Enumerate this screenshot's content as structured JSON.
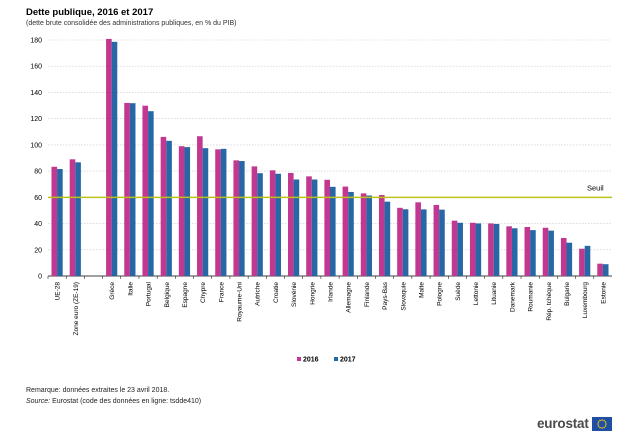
{
  "header": {
    "title": "Dette publique, 2016 et 2017",
    "subtitle": "(dette brute consolidée des administrations publiques, en % du PIB)"
  },
  "notes": {
    "remark": "Remarque: données extraites le 23 avril 2018.",
    "source_label": "Source:",
    "source_text": "Eurostat (code des données en ligne: tsdde410)"
  },
  "logo": {
    "text": "eurostat"
  },
  "chart_data": {
    "type": "bar",
    "title": "Dette publique, 2016 et 2017",
    "subtitle": "(dette brute consolidée des administrations publiques, en % du PIB)",
    "categories": [
      "UE-28",
      "Zone euro (ZE-19)",
      "",
      "Grèce",
      "Italie",
      "Portugal",
      "Belgique",
      "Espagne",
      "Chypre",
      "France",
      "Royaume-Uni",
      "Autriche",
      "Croatie",
      "Slovénie",
      "Hongrie",
      "Irlande",
      "Allemagne",
      "Finlande",
      "Pays-Bas",
      "Slovaquie",
      "Malte",
      "Pologne",
      "Suède",
      "Lettonie",
      "Lituanie",
      "Danemark",
      "Roumanie",
      "Rép. tchèque",
      "Bulgarie",
      "Luxembourg",
      "Estonie"
    ],
    "series": [
      {
        "name": "2016",
        "color": "#c2378f",
        "values": [
          83.3,
          89.0,
          null,
          180.8,
          132.0,
          129.9,
          106.1,
          99.0,
          106.6,
          96.6,
          88.2,
          83.6,
          80.6,
          78.6,
          76.0,
          73.4,
          68.2,
          63.0,
          61.8,
          52.0,
          56.2,
          54.2,
          42.2,
          40.6,
          40.1,
          37.9,
          37.4,
          36.8,
          29.0,
          20.8,
          9.4
        ]
      },
      {
        "name": "2017",
        "color": "#2767a6",
        "values": [
          81.6,
          86.7,
          null,
          178.6,
          131.8,
          125.7,
          103.1,
          98.3,
          97.5,
          97.0,
          87.7,
          78.4,
          78.0,
          73.6,
          73.6,
          68.0,
          64.1,
          61.4,
          56.7,
          50.9,
          50.8,
          50.6,
          40.6,
          40.1,
          39.7,
          36.4,
          35.0,
          34.6,
          25.4,
          23.0,
          9.0
        ]
      }
    ],
    "threshold": {
      "label": "Seuil",
      "value": 60,
      "color": "#b8c21a"
    },
    "ylim": [
      0,
      180
    ],
    "yticks": [
      0,
      20,
      40,
      60,
      80,
      100,
      120,
      140,
      160,
      180
    ],
    "grid": true,
    "legend": "bottom-center",
    "xlabel": "",
    "ylabel": ""
  }
}
